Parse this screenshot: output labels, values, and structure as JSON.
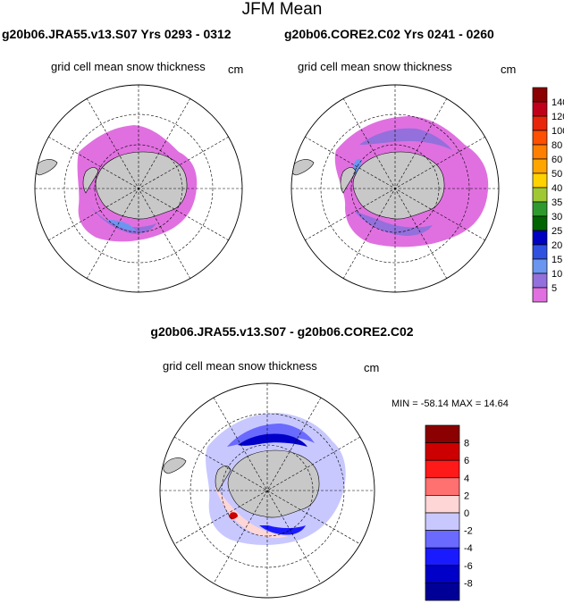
{
  "title": "JFM Mean",
  "panels": [
    {
      "title": "g20b06.JRA55.v13.S07  Yrs 0293 - 0312",
      "field_label": "grid cell mean snow thickness",
      "units": "cm"
    },
    {
      "title": "g20b06.CORE2.C02  Yrs 0241 - 0260",
      "field_label": "grid cell mean snow thickness",
      "units": "cm"
    }
  ],
  "difference": {
    "title": "g20b06.JRA55.v13.S07 - g20b06.CORE2.C02",
    "field_label": "grid cell mean snow thickness",
    "units": "cm",
    "minmax": "MIN = -58.14 MAX =  14.64"
  },
  "colorbar_top": {
    "labels": [
      "140",
      "120",
      "100",
      "80",
      "60",
      "50",
      "40",
      "35",
      "30",
      "25",
      "20",
      "15",
      "10",
      "5"
    ],
    "colors": [
      "#8b0000",
      "#c0001a",
      "#e8260c",
      "#ff4f00",
      "#ff7f00",
      "#ffa500",
      "#ffd200",
      "#a0c832",
      "#2e9a2e",
      "#006400",
      "#0000c0",
      "#3050e0",
      "#6a96f0",
      "#9370db",
      "#e070e0"
    ]
  },
  "colorbar_diff": {
    "labels": [
      "8",
      "6",
      "4",
      "2",
      "0",
      "-2",
      "-4",
      "-6",
      "-8"
    ],
    "colors": [
      "#8b0000",
      "#cc0000",
      "#ff1a1a",
      "#ff7070",
      "#ffd6d6",
      "#c8c8ff",
      "#6a6aff",
      "#1a1aff",
      "#0000c8",
      "#000096"
    ]
  }
}
